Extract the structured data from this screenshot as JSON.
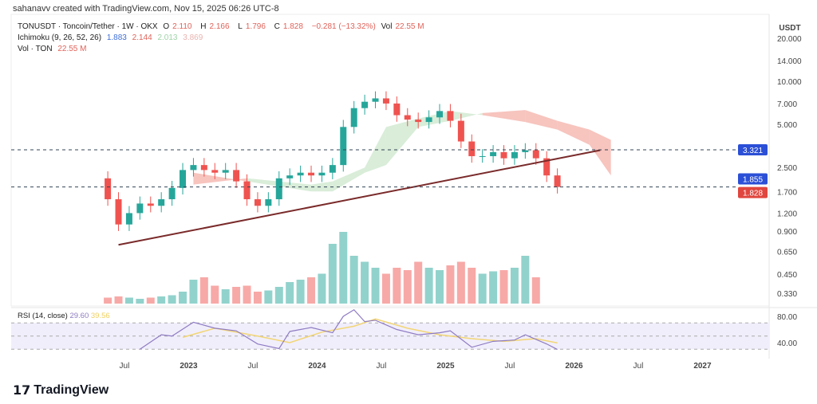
{
  "credit": "sahanavv created with TradingView.com, Nov 15, 2025 06:26 UTC-8",
  "legend": {
    "symbol": "TONUSDT · Toncoin/Tether · 1W · OKX",
    "o_label": "O",
    "o": "2.110",
    "h_label": "H",
    "h": "2.166",
    "l_label": "L",
    "l": "1.796",
    "c_label": "C",
    "c": "1.828",
    "change": "−0.281 (−13.32%)",
    "vol_label": "Vol",
    "vol": "22.55 M",
    "ichimoku": "Ichimoku (9, 26, 52, 26)",
    "ichi_vals": [
      "1.883",
      "2.144",
      "2.013",
      "3.869"
    ],
    "vol_study": "Vol · TON",
    "vol_study_val": "22.55 M"
  },
  "rsi": {
    "label": "RSI (14, close)",
    "value": "29.60",
    "ma": "39.56"
  },
  "logo": "TradingView",
  "colors": {
    "up": "#26a69a",
    "down": "#ef5350",
    "trend": "#7a2a2a",
    "cloud_up": "#cfe8cf",
    "cloud_down": "#f5b5ae",
    "blue_tag": "#2b4fd6",
    "red_tag": "#e0463e",
    "rsi": "#8e7cc3",
    "rsi_ma": "#f2d675"
  },
  "chart_data": {
    "type": "candlestick",
    "price_scale": "log",
    "currency": "USDT",
    "y_ticks": [
      "20.000",
      "14.000",
      "10.000",
      "7.000",
      "5.000",
      "2.500",
      "1.700",
      "1.200",
      "0.900",
      "0.650",
      "0.450",
      "0.330"
    ],
    "x_ticks": [
      "Jul",
      "2023",
      "Jul",
      "2024",
      "Jul",
      "2025",
      "Jul",
      "2026",
      "Jul",
      "2027"
    ],
    "price_tags": [
      {
        "value": "3.321",
        "color": "#2b4fd6"
      },
      {
        "value": "1.855",
        "color": "#2b4fd6"
      },
      {
        "value": "1.828",
        "color": "#e0463e"
      }
    ],
    "horizontal_lines": [
      3.321,
      1.828
    ],
    "trendline": [
      [
        "2022-06",
        0.72
      ],
      [
        "2026-03",
        3.3
      ]
    ],
    "closes": [
      [
        "2022-05",
        1.5
      ],
      [
        "2022-06",
        1.0
      ],
      [
        "2022-07",
        1.2
      ],
      [
        "2022-08",
        1.4
      ],
      [
        "2022-09",
        1.35
      ],
      [
        "2022-10",
        1.5
      ],
      [
        "2022-11",
        1.8
      ],
      [
        "2022-12",
        2.4
      ],
      [
        "2023-01",
        2.6
      ],
      [
        "2023-02",
        2.4
      ],
      [
        "2023-03",
        2.3
      ],
      [
        "2023-04",
        2.4
      ],
      [
        "2023-05",
        2.0
      ],
      [
        "2023-06",
        1.5
      ],
      [
        "2023-07",
        1.35
      ],
      [
        "2023-08",
        1.5
      ],
      [
        "2023-09",
        2.1
      ],
      [
        "2023-10",
        2.2
      ],
      [
        "2023-11",
        2.3
      ],
      [
        "2023-12",
        2.2
      ],
      [
        "2024-01",
        2.3
      ],
      [
        "2024-02",
        2.6
      ],
      [
        "2024-03",
        4.8
      ],
      [
        "2024-04",
        6.5
      ],
      [
        "2024-05",
        7.2
      ],
      [
        "2024-06",
        7.6
      ],
      [
        "2024-07",
        7.0
      ],
      [
        "2024-08",
        5.8
      ],
      [
        "2024-09",
        5.4
      ],
      [
        "2024-10",
        5.2
      ],
      [
        "2024-11",
        5.6
      ],
      [
        "2024-12",
        6.2
      ],
      [
        "2025-01",
        5.3
      ],
      [
        "2025-02",
        3.8
      ],
      [
        "2025-03",
        3.0
      ],
      [
        "2025-04",
        3.0
      ],
      [
        "2025-05",
        3.2
      ],
      [
        "2025-06",
        2.9
      ],
      [
        "2025-07",
        3.2
      ],
      [
        "2025-08",
        3.3
      ],
      [
        "2025-09",
        2.9
      ],
      [
        "2025-10",
        2.2
      ],
      [
        "2025-11",
        1.828
      ]
    ],
    "volume": [
      5,
      6,
      5,
      4,
      5,
      6,
      7,
      10,
      20,
      22,
      15,
      12,
      14,
      15,
      10,
      11,
      14,
      18,
      20,
      22,
      25,
      50,
      60,
      40,
      35,
      30,
      25,
      30,
      28,
      35,
      30,
      28,
      32,
      35,
      30,
      25,
      27,
      28,
      30,
      40,
      22
    ],
    "ichimoku_cloud": [
      [
        "2023-01",
        1.9,
        2.3
      ],
      [
        "2023-06",
        2.1,
        2.0
      ],
      [
        "2023-12",
        1.9,
        1.7
      ],
      [
        "2024-02",
        2.0,
        1.7
      ],
      [
        "2024-05",
        2.5,
        2.3
      ],
      [
        "2024-07",
        4.8,
        2.6
      ],
      [
        "2024-10",
        5.5,
        4.8
      ],
      [
        "2025-01",
        6.2,
        5.3
      ],
      [
        "2025-04",
        5.8,
        6.0
      ],
      [
        "2025-08",
        5.2,
        6.3
      ],
      [
        "2025-11",
        4.6,
        5.3
      ],
      [
        "2026-02",
        3.6,
        4.6
      ],
      [
        "2026-04",
        2.2,
        3.9
      ]
    ],
    "rsi_range": [
      20,
      90
    ],
    "rsi_levels": [
      70,
      50,
      30
    ],
    "rsi_series": [
      [
        "2022-08",
        30
      ],
      [
        "2022-10",
        52
      ],
      [
        "2022-11",
        50
      ],
      [
        "2023-01",
        71
      ],
      [
        "2023-03",
        62
      ],
      [
        "2023-05",
        58
      ],
      [
        "2023-07",
        38
      ],
      [
        "2023-09",
        31
      ],
      [
        "2023-10",
        57
      ],
      [
        "2023-12",
        63
      ],
      [
        "2024-02",
        55
      ],
      [
        "2024-03",
        80
      ],
      [
        "2024-04",
        90
      ],
      [
        "2024-05",
        72
      ],
      [
        "2024-06",
        74
      ],
      [
        "2024-08",
        60
      ],
      [
        "2024-10",
        52
      ],
      [
        "2024-12",
        55
      ],
      [
        "2025-01",
        58
      ],
      [
        "2025-03",
        33
      ],
      [
        "2025-05",
        42
      ],
      [
        "2025-07",
        44
      ],
      [
        "2025-08",
        52
      ],
      [
        "2025-10",
        38
      ],
      [
        "2025-11",
        29.6
      ]
    ],
    "rsi_ma_series": [
      [
        "2022-12",
        48
      ],
      [
        "2023-03",
        62
      ],
      [
        "2023-07",
        50
      ],
      [
        "2023-10",
        40
      ],
      [
        "2024-01",
        56
      ],
      [
        "2024-04",
        65
      ],
      [
        "2024-06",
        76
      ],
      [
        "2024-09",
        62
      ],
      [
        "2024-12",
        52
      ],
      [
        "2025-03",
        46
      ],
      [
        "2025-06",
        42
      ],
      [
        "2025-09",
        46
      ],
      [
        "2025-11",
        39.56
      ]
    ]
  }
}
